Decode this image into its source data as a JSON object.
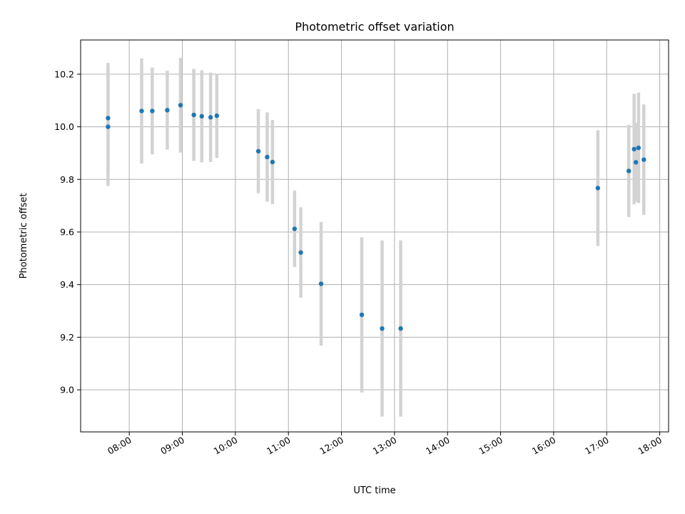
{
  "chart_data": {
    "type": "scatter",
    "title": "Photometric offset variation",
    "xlabel": "UTC time",
    "ylabel": "Photometric offset",
    "x_axis_kind": "time",
    "xlim": [
      "07:05",
      "18:10"
    ],
    "ylim": [
      8.84,
      10.33
    ],
    "grid": true,
    "x_ticks": [
      "08:00",
      "09:00",
      "10:00",
      "11:00",
      "12:00",
      "13:00",
      "14:00",
      "15:00",
      "16:00",
      "17:00",
      "18:00"
    ],
    "y_ticks": [
      9.0,
      9.2,
      9.4,
      9.6,
      9.8,
      10.0,
      10.2
    ],
    "marker_color": "#1f77b4",
    "errorbar_color": "#d3d3d3",
    "points": [
      {
        "t": "07:36",
        "y": 10.033,
        "err": 0.21
      },
      {
        "t": "07:36",
        "y": 10.0,
        "err": 0.225
      },
      {
        "t": "08:14",
        "y": 10.06,
        "err": 0.2
      },
      {
        "t": "08:26",
        "y": 10.06,
        "err": 0.165
      },
      {
        "t": "08:43",
        "y": 10.063,
        "err": 0.15
      },
      {
        "t": "08:58",
        "y": 10.082,
        "err": 0.18
      },
      {
        "t": "09:13",
        "y": 10.045,
        "err": 0.175
      },
      {
        "t": "09:22",
        "y": 10.04,
        "err": 0.175
      },
      {
        "t": "09:32",
        "y": 10.036,
        "err": 0.17
      },
      {
        "t": "09:39",
        "y": 10.042,
        "err": 0.16
      },
      {
        "t": "10:26",
        "y": 9.907,
        "err": 0.16
      },
      {
        "t": "10:36",
        "y": 9.885,
        "err": 0.17
      },
      {
        "t": "10:42",
        "y": 9.866,
        "err": 0.16
      },
      {
        "t": "11:07",
        "y": 9.612,
        "err": 0.145
      },
      {
        "t": "11:14",
        "y": 9.522,
        "err": 0.172
      },
      {
        "t": "11:37",
        "y": 9.403,
        "err": 0.235
      },
      {
        "t": "12:23",
        "y": 9.285,
        "err": 0.295
      },
      {
        "t": "12:46",
        "y": 9.233,
        "err": 0.335
      },
      {
        "t": "13:07",
        "y": 9.233,
        "err": 0.335
      },
      {
        "t": "16:50",
        "y": 9.767,
        "err": 0.22
      },
      {
        "t": "17:25",
        "y": 9.832,
        "err": 0.175
      },
      {
        "t": "17:31",
        "y": 9.915,
        "err": 0.21
      },
      {
        "t": "17:33",
        "y": 9.865,
        "err": 0.15
      },
      {
        "t": "17:36",
        "y": 9.92,
        "err": 0.21
      },
      {
        "t": "17:42",
        "y": 9.875,
        "err": 0.21
      }
    ]
  }
}
